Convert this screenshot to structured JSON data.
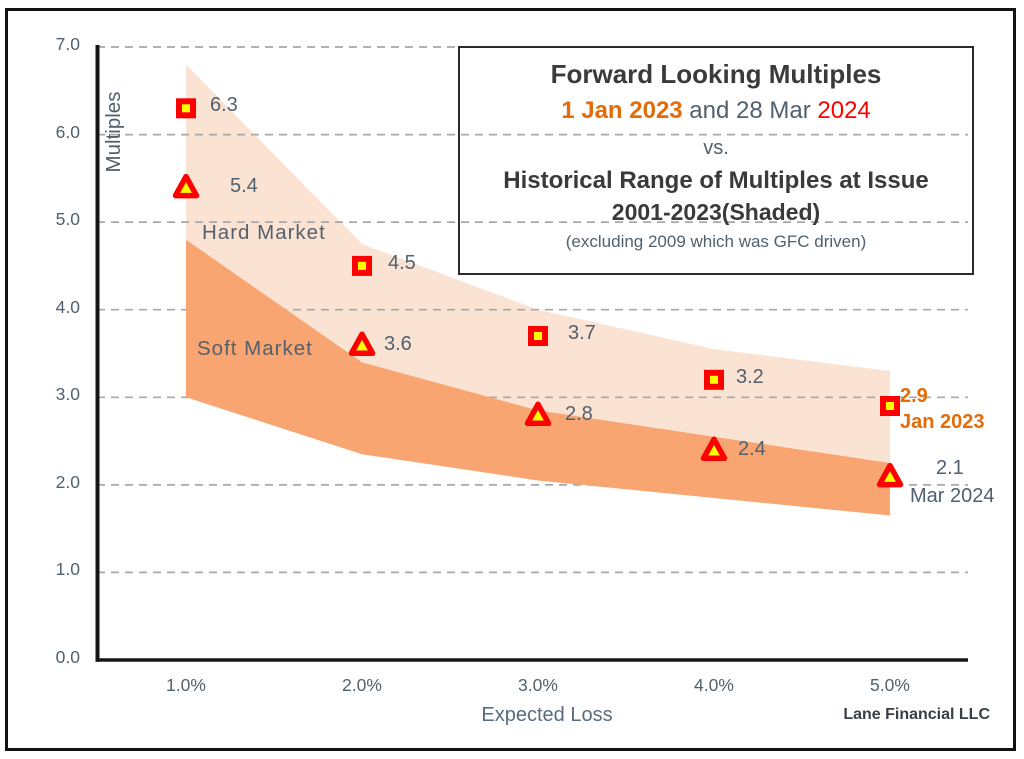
{
  "title_box": {
    "line1": "Forward Looking Multiples",
    "line2": {
      "part1": "1 Jan 2023",
      "part2": " and 28 Mar ",
      "part3": "2024"
    },
    "line3": "vs.",
    "line4": "Historical Range of Multiples at Issue",
    "line5": "2001-2023(Shaded)",
    "line6": "(excluding 2009 which was GFC driven)"
  },
  "annotations": {
    "hard_market": "Hard Market",
    "soft_market": "Soft Market",
    "brand": "Lane Financial LLC"
  },
  "chart_data": {
    "type": "scatter",
    "title": "Forward Looking Multiples 1 Jan 2023 and 28 Mar 2024 vs. Historical Range of Multiples at Issue 2001-2023 (Shaded), excluding 2009 which was GFC driven",
    "xlabel": "Expected Loss",
    "ylabel": "Multiples",
    "x_values_percent": [
      1.0,
      2.0,
      3.0,
      4.0,
      5.0
    ],
    "x_tick_labels": [
      "1.0%",
      "2.0%",
      "3.0%",
      "4.0%",
      "5.0%"
    ],
    "y_tick_labels": [
      "0.0",
      "1.0",
      "2.0",
      "3.0",
      "4.0",
      "5.0",
      "6.0",
      "7.0"
    ],
    "ylim": [
      0.0,
      7.0
    ],
    "grid": "horizontal-dashed",
    "legend_position": "none",
    "bands": [
      {
        "name": "Hard Market",
        "color": "#FBE3D4",
        "upper": [
          6.8,
          4.75,
          4.0,
          3.55,
          3.3
        ],
        "lower": [
          4.8,
          3.4,
          2.85,
          2.55,
          2.25
        ]
      },
      {
        "name": "Soft Market",
        "color": "#F8A571",
        "upper": [
          4.8,
          3.4,
          2.85,
          2.55,
          2.25
        ],
        "lower": [
          3.0,
          2.35,
          2.05,
          1.85,
          1.65
        ]
      }
    ],
    "series": [
      {
        "name": "1 Jan 2023",
        "marker": "square",
        "marker_fill": "#FFFF00",
        "marker_stroke": "#FF0000",
        "values": [
          6.3,
          4.5,
          3.7,
          3.2,
          2.9
        ],
        "point_labels": [
          "6.3",
          "4.5",
          "3.7",
          "3.2"
        ],
        "end_label": {
          "value": "2.9",
          "caption": "Jan 2023",
          "color": "#E36C09",
          "bold": true
        }
      },
      {
        "name": "28 Mar 2024",
        "marker": "triangle",
        "marker_fill": "#FFFF00",
        "marker_stroke": "#FF0000",
        "values": [
          5.4,
          3.6,
          2.8,
          2.4,
          2.1
        ],
        "point_labels": [
          "5.4",
          "3.6",
          "2.8",
          "2.4"
        ],
        "end_label": {
          "value": "2.1",
          "caption": "Mar 2024",
          "color": "#51606E",
          "bold": false
        }
      }
    ],
    "colors": {
      "gridline": "#A8A8A8",
      "axis": "#161616",
      "text_gray": "#51606E",
      "text_dark": "#3A3A3E",
      "accent_orange": "#E36C09",
      "accent_red": "#FF0000"
    }
  }
}
